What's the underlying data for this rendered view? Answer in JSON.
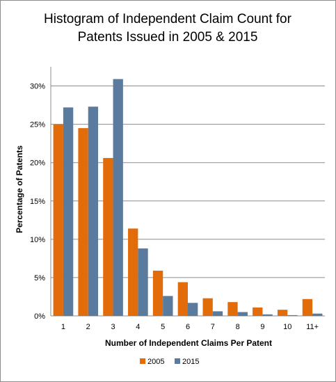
{
  "chart_data": {
    "type": "bar",
    "title": [
      "Histogram of Independent Claim Count for",
      "Patents Issued in 2005 & 2015"
    ],
    "xlabel": "Number of Independent Claims Per Patent",
    "ylabel": "Percentage of Patents",
    "categories": [
      "1",
      "2",
      "3",
      "4",
      "5",
      "6",
      "7",
      "8",
      "9",
      "10",
      "11+"
    ],
    "ylim": [
      0,
      32.5
    ],
    "yticks": [
      0,
      5,
      10,
      15,
      20,
      25,
      30
    ],
    "ytick_labels": [
      "0%",
      "5%",
      "10%",
      "15%",
      "20%",
      "25%",
      "30%"
    ],
    "grid": true,
    "legend_position": "bottom",
    "series": [
      {
        "name": "2005",
        "color": "#E36C0A",
        "values": [
          25.0,
          24.5,
          20.6,
          11.4,
          5.9,
          4.4,
          2.3,
          1.8,
          1.1,
          0.8,
          2.2
        ]
      },
      {
        "name": "2015",
        "color": "#5B7B9E",
        "values": [
          27.2,
          27.3,
          30.9,
          8.8,
          2.6,
          1.7,
          0.6,
          0.5,
          0.2,
          0.1,
          0.3
        ]
      }
    ]
  }
}
